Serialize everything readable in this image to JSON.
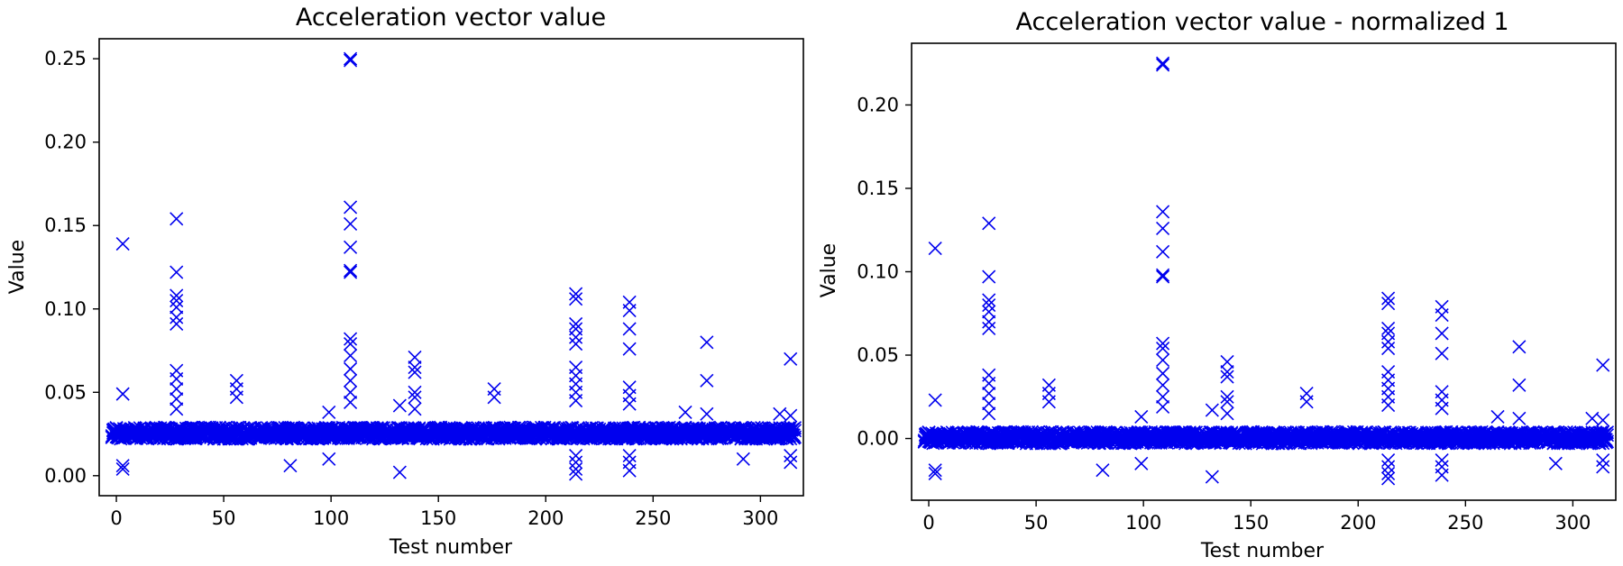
{
  "figure": {
    "marker_color": "#0000ee",
    "marker": "x"
  },
  "chart_data": [
    {
      "type": "scatter",
      "title": "Acceleration vector value",
      "xlabel": "Test number",
      "ylabel": "Value",
      "xlim": [
        -8,
        320
      ],
      "ylim": [
        -0.012,
        0.262
      ],
      "xticks": [
        0,
        50,
        100,
        150,
        200,
        250,
        300
      ],
      "xtick_labels": [
        "0",
        "50",
        "100",
        "150",
        "200",
        "250",
        "300"
      ],
      "yticks": [
        0.0,
        0.05,
        0.1,
        0.15,
        0.2,
        0.25
      ],
      "ytick_labels": [
        "0.00",
        "0.05",
        "0.10",
        "0.15",
        "0.20",
        "0.25"
      ],
      "grid": false,
      "baseline": {
        "x_start": -2,
        "x_end": 316,
        "center": 0.0255,
        "spread": 0.0035
      },
      "outliers": [
        {
          "x": 3,
          "y": 0.139
        },
        {
          "x": 3,
          "y": 0.049
        },
        {
          "x": 3,
          "y": 0.006
        },
        {
          "x": 3,
          "y": 0.004
        },
        {
          "x": 28,
          "y": 0.154
        },
        {
          "x": 28,
          "y": 0.122
        },
        {
          "x": 28,
          "y": 0.108
        },
        {
          "x": 28,
          "y": 0.105
        },
        {
          "x": 28,
          "y": 0.101
        },
        {
          "x": 28,
          "y": 0.095
        },
        {
          "x": 28,
          "y": 0.091
        },
        {
          "x": 28,
          "y": 0.063
        },
        {
          "x": 28,
          "y": 0.058
        },
        {
          "x": 28,
          "y": 0.052
        },
        {
          "x": 28,
          "y": 0.046
        },
        {
          "x": 28,
          "y": 0.04
        },
        {
          "x": 56,
          "y": 0.057
        },
        {
          "x": 56,
          "y": 0.052
        },
        {
          "x": 56,
          "y": 0.047
        },
        {
          "x": 81,
          "y": 0.006
        },
        {
          "x": 99,
          "y": 0.038
        },
        {
          "x": 99,
          "y": 0.01
        },
        {
          "x": 109,
          "y": 0.25
        },
        {
          "x": 109,
          "y": 0.249
        },
        {
          "x": 109,
          "y": 0.161
        },
        {
          "x": 109,
          "y": 0.151
        },
        {
          "x": 109,
          "y": 0.137
        },
        {
          "x": 109,
          "y": 0.123
        },
        {
          "x": 109,
          "y": 0.122
        },
        {
          "x": 109,
          "y": 0.082
        },
        {
          "x": 109,
          "y": 0.079
        },
        {
          "x": 109,
          "y": 0.072
        },
        {
          "x": 109,
          "y": 0.064
        },
        {
          "x": 109,
          "y": 0.057
        },
        {
          "x": 109,
          "y": 0.05
        },
        {
          "x": 109,
          "y": 0.044
        },
        {
          "x": 132,
          "y": 0.002
        },
        {
          "x": 132,
          "y": 0.042
        },
        {
          "x": 139,
          "y": 0.071
        },
        {
          "x": 139,
          "y": 0.065
        },
        {
          "x": 139,
          "y": 0.062
        },
        {
          "x": 139,
          "y": 0.05
        },
        {
          "x": 139,
          "y": 0.047
        },
        {
          "x": 139,
          "y": 0.04
        },
        {
          "x": 176,
          "y": 0.052
        },
        {
          "x": 176,
          "y": 0.047
        },
        {
          "x": 214,
          "y": 0.109
        },
        {
          "x": 214,
          "y": 0.106
        },
        {
          "x": 214,
          "y": 0.091
        },
        {
          "x": 214,
          "y": 0.088
        },
        {
          "x": 214,
          "y": 0.083
        },
        {
          "x": 214,
          "y": 0.079
        },
        {
          "x": 214,
          "y": 0.065
        },
        {
          "x": 214,
          "y": 0.06
        },
        {
          "x": 214,
          "y": 0.055
        },
        {
          "x": 214,
          "y": 0.05
        },
        {
          "x": 214,
          "y": 0.045
        },
        {
          "x": 214,
          "y": 0.012
        },
        {
          "x": 214,
          "y": 0.008
        },
        {
          "x": 214,
          "y": 0.004
        },
        {
          "x": 214,
          "y": 0.001
        },
        {
          "x": 239,
          "y": 0.104
        },
        {
          "x": 239,
          "y": 0.099
        },
        {
          "x": 239,
          "y": 0.088
        },
        {
          "x": 239,
          "y": 0.076
        },
        {
          "x": 239,
          "y": 0.053
        },
        {
          "x": 239,
          "y": 0.048
        },
        {
          "x": 239,
          "y": 0.043
        },
        {
          "x": 239,
          "y": 0.012
        },
        {
          "x": 239,
          "y": 0.008
        },
        {
          "x": 239,
          "y": 0.003
        },
        {
          "x": 265,
          "y": 0.038
        },
        {
          "x": 275,
          "y": 0.08
        },
        {
          "x": 275,
          "y": 0.057
        },
        {
          "x": 275,
          "y": 0.037
        },
        {
          "x": 292,
          "y": 0.01
        },
        {
          "x": 309,
          "y": 0.037
        },
        {
          "x": 314,
          "y": 0.07
        },
        {
          "x": 314,
          "y": 0.036
        },
        {
          "x": 314,
          "y": 0.012
        },
        {
          "x": 314,
          "y": 0.008
        }
      ]
    },
    {
      "type": "scatter",
      "title": "Acceleration vector value - normalized 1",
      "xlabel": "Test number",
      "ylabel": "Value",
      "xlim": [
        -8,
        320
      ],
      "ylim": [
        -0.037,
        0.237
      ],
      "xticks": [
        0,
        50,
        100,
        150,
        200,
        250,
        300
      ],
      "xtick_labels": [
        "0",
        "50",
        "100",
        "150",
        "200",
        "250",
        "300"
      ],
      "yticks": [
        0.0,
        0.05,
        0.1,
        0.15,
        0.2
      ],
      "ytick_labels": [
        "0.00",
        "0.05",
        "0.10",
        "0.15",
        "0.20"
      ],
      "grid": false,
      "baseline": {
        "x_start": -2,
        "x_end": 316,
        "center": 0.0005,
        "spread": 0.0035
      },
      "outliers": [
        {
          "x": 3,
          "y": 0.114
        },
        {
          "x": 3,
          "y": 0.023
        },
        {
          "x": 3,
          "y": -0.019
        },
        {
          "x": 3,
          "y": -0.021
        },
        {
          "x": 28,
          "y": 0.129
        },
        {
          "x": 28,
          "y": 0.097
        },
        {
          "x": 28,
          "y": 0.083
        },
        {
          "x": 28,
          "y": 0.08
        },
        {
          "x": 28,
          "y": 0.076
        },
        {
          "x": 28,
          "y": 0.07
        },
        {
          "x": 28,
          "y": 0.066
        },
        {
          "x": 28,
          "y": 0.038
        },
        {
          "x": 28,
          "y": 0.033
        },
        {
          "x": 28,
          "y": 0.027
        },
        {
          "x": 28,
          "y": 0.021
        },
        {
          "x": 28,
          "y": 0.015
        },
        {
          "x": 56,
          "y": 0.032
        },
        {
          "x": 56,
          "y": 0.027
        },
        {
          "x": 56,
          "y": 0.022
        },
        {
          "x": 81,
          "y": -0.019
        },
        {
          "x": 99,
          "y": 0.013
        },
        {
          "x": 99,
          "y": -0.015
        },
        {
          "x": 109,
          "y": 0.225
        },
        {
          "x": 109,
          "y": 0.224
        },
        {
          "x": 109,
          "y": 0.136
        },
        {
          "x": 109,
          "y": 0.126
        },
        {
          "x": 109,
          "y": 0.112
        },
        {
          "x": 109,
          "y": 0.098
        },
        {
          "x": 109,
          "y": 0.097
        },
        {
          "x": 109,
          "y": 0.057
        },
        {
          "x": 109,
          "y": 0.054
        },
        {
          "x": 109,
          "y": 0.047
        },
        {
          "x": 109,
          "y": 0.039
        },
        {
          "x": 109,
          "y": 0.032
        },
        {
          "x": 109,
          "y": 0.025
        },
        {
          "x": 109,
          "y": 0.019
        },
        {
          "x": 132,
          "y": -0.023
        },
        {
          "x": 132,
          "y": 0.017
        },
        {
          "x": 139,
          "y": 0.046
        },
        {
          "x": 139,
          "y": 0.04
        },
        {
          "x": 139,
          "y": 0.037
        },
        {
          "x": 139,
          "y": 0.025
        },
        {
          "x": 139,
          "y": 0.022
        },
        {
          "x": 139,
          "y": 0.015
        },
        {
          "x": 176,
          "y": 0.027
        },
        {
          "x": 176,
          "y": 0.022
        },
        {
          "x": 214,
          "y": 0.084
        },
        {
          "x": 214,
          "y": 0.081
        },
        {
          "x": 214,
          "y": 0.066
        },
        {
          "x": 214,
          "y": 0.063
        },
        {
          "x": 214,
          "y": 0.058
        },
        {
          "x": 214,
          "y": 0.054
        },
        {
          "x": 214,
          "y": 0.04
        },
        {
          "x": 214,
          "y": 0.035
        },
        {
          "x": 214,
          "y": 0.03
        },
        {
          "x": 214,
          "y": 0.025
        },
        {
          "x": 214,
          "y": 0.02
        },
        {
          "x": 214,
          "y": -0.013
        },
        {
          "x": 214,
          "y": -0.017
        },
        {
          "x": 214,
          "y": -0.021
        },
        {
          "x": 214,
          "y": -0.024
        },
        {
          "x": 239,
          "y": 0.079
        },
        {
          "x": 239,
          "y": 0.074
        },
        {
          "x": 239,
          "y": 0.063
        },
        {
          "x": 239,
          "y": 0.051
        },
        {
          "x": 239,
          "y": 0.028
        },
        {
          "x": 239,
          "y": 0.023
        },
        {
          "x": 239,
          "y": 0.018
        },
        {
          "x": 239,
          "y": -0.013
        },
        {
          "x": 239,
          "y": -0.017
        },
        {
          "x": 239,
          "y": -0.022
        },
        {
          "x": 265,
          "y": 0.013
        },
        {
          "x": 275,
          "y": 0.055
        },
        {
          "x": 275,
          "y": 0.032
        },
        {
          "x": 275,
          "y": 0.012
        },
        {
          "x": 292,
          "y": -0.015
        },
        {
          "x": 309,
          "y": 0.012
        },
        {
          "x": 314,
          "y": 0.044
        },
        {
          "x": 314,
          "y": 0.011
        },
        {
          "x": 314,
          "y": -0.013
        },
        {
          "x": 314,
          "y": -0.017
        }
      ]
    }
  ]
}
